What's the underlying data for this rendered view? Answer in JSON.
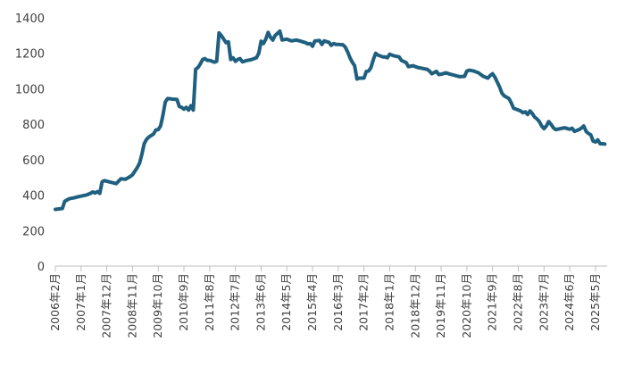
{
  "chart_data": {
    "type": "line",
    "title": "",
    "xlabel": "",
    "ylabel": "",
    "ylim": [
      0,
      1400
    ],
    "yticks": [
      0,
      200,
      400,
      600,
      800,
      1000,
      1200,
      1400
    ],
    "grid": false,
    "legend": "none",
    "line_color": "#1f5f7f",
    "x_ticks": [
      "2006年2月",
      "2007年1月",
      "2007年12月",
      "2008年11月",
      "2009年10月",
      "2010年9月",
      "2011年8月",
      "2012年7月",
      "2013年6月",
      "2014年5月",
      "2015年4月",
      "2016年3月",
      "2017年2月",
      "2018年1月",
      "2018年12月",
      "2019年11月",
      "2020年10月",
      "2021年9月",
      "2022年8月",
      "2023年7月",
      "2024年6月",
      "2025年5月"
    ],
    "series": [
      {
        "points": [
          [
            0,
            320
          ],
          [
            3,
            325
          ],
          [
            4,
            365
          ],
          [
            6,
            380
          ],
          [
            8,
            385
          ],
          [
            10,
            392
          ],
          [
            13,
            400
          ],
          [
            15,
            410
          ],
          [
            16,
            418
          ],
          [
            17,
            412
          ],
          [
            18,
            420
          ],
          [
            19,
            410
          ],
          [
            20,
            475
          ],
          [
            21,
            482
          ],
          [
            24,
            472
          ],
          [
            26,
            465
          ],
          [
            27,
            478
          ],
          [
            28,
            492
          ],
          [
            30,
            490
          ],
          [
            32,
            505
          ],
          [
            33,
            515
          ],
          [
            34,
            535
          ],
          [
            35,
            555
          ],
          [
            36,
            580
          ],
          [
            37,
            630
          ],
          [
            38,
            690
          ],
          [
            39,
            715
          ],
          [
            40,
            728
          ],
          [
            42,
            745
          ],
          [
            43,
            768
          ],
          [
            44,
            770
          ],
          [
            45,
            790
          ],
          [
            46,
            850
          ],
          [
            47,
            925
          ],
          [
            48,
            945
          ],
          [
            50,
            942
          ],
          [
            52,
            940
          ],
          [
            53,
            900
          ],
          [
            54,
            895
          ],
          [
            55,
            885
          ],
          [
            56,
            895
          ],
          [
            57,
            880
          ],
          [
            58,
            905
          ],
          [
            59,
            880
          ],
          [
            60,
            1110
          ],
          [
            61,
            1120
          ],
          [
            62,
            1140
          ],
          [
            63,
            1165
          ],
          [
            64,
            1170
          ],
          [
            65,
            1160
          ],
          [
            66,
            1160
          ],
          [
            67,
            1155
          ],
          [
            68,
            1150
          ],
          [
            69,
            1155
          ],
          [
            70,
            1315
          ],
          [
            71,
            1300
          ],
          [
            72,
            1280
          ],
          [
            73,
            1260
          ],
          [
            74,
            1265
          ],
          [
            75,
            1165
          ],
          [
            76,
            1175
          ],
          [
            77,
            1155
          ],
          [
            78,
            1165
          ],
          [
            79,
            1170
          ],
          [
            80,
            1152
          ],
          [
            82,
            1160
          ],
          [
            84,
            1165
          ],
          [
            86,
            1175
          ],
          [
            87,
            1200
          ],
          [
            88,
            1268
          ],
          [
            89,
            1255
          ],
          [
            90,
            1280
          ],
          [
            91,
            1318
          ],
          [
            92,
            1290
          ],
          [
            93,
            1275
          ],
          [
            94,
            1300
          ],
          [
            96,
            1325
          ],
          [
            97,
            1275
          ],
          [
            99,
            1280
          ],
          [
            101,
            1270
          ],
          [
            103,
            1275
          ],
          [
            105,
            1268
          ],
          [
            107,
            1260
          ],
          [
            108,
            1253
          ],
          [
            109,
            1255
          ],
          [
            110,
            1240
          ],
          [
            111,
            1270
          ],
          [
            113,
            1272
          ],
          [
            114,
            1250
          ],
          [
            115,
            1270
          ],
          [
            117,
            1262
          ],
          [
            118,
            1245
          ],
          [
            119,
            1255
          ],
          [
            120,
            1250
          ],
          [
            121,
            1250
          ],
          [
            123,
            1248
          ],
          [
            124,
            1235
          ],
          [
            125,
            1208
          ],
          [
            126,
            1175
          ],
          [
            127,
            1150
          ],
          [
            128,
            1130
          ],
          [
            129,
            1055
          ],
          [
            130,
            1060
          ],
          [
            132,
            1060
          ],
          [
            133,
            1098
          ],
          [
            134,
            1100
          ],
          [
            135,
            1120
          ],
          [
            136,
            1165
          ],
          [
            137,
            1200
          ],
          [
            138,
            1190
          ],
          [
            139,
            1185
          ],
          [
            140,
            1180
          ],
          [
            141,
            1180
          ],
          [
            142,
            1175
          ],
          [
            143,
            1195
          ],
          [
            145,
            1185
          ],
          [
            147,
            1180
          ],
          [
            148,
            1160
          ],
          [
            150,
            1148
          ],
          [
            151,
            1125
          ],
          [
            153,
            1130
          ],
          [
            155,
            1120
          ],
          [
            157,
            1115
          ],
          [
            158,
            1112
          ],
          [
            159,
            1110
          ],
          [
            160,
            1100
          ],
          [
            161,
            1085
          ],
          [
            163,
            1098
          ],
          [
            164,
            1080
          ],
          [
            165,
            1082
          ],
          [
            167,
            1090
          ],
          [
            169,
            1082
          ],
          [
            171,
            1075
          ],
          [
            173,
            1068
          ],
          [
            175,
            1070
          ],
          [
            176,
            1100
          ],
          [
            177,
            1105
          ],
          [
            179,
            1100
          ],
          [
            181,
            1090
          ],
          [
            182,
            1080
          ],
          [
            183,
            1070
          ],
          [
            185,
            1060
          ],
          [
            186,
            1075
          ],
          [
            187,
            1085
          ],
          [
            188,
            1065
          ],
          [
            189,
            1038
          ],
          [
            190,
            1010
          ],
          [
            191,
            975
          ],
          [
            192,
            960
          ],
          [
            194,
            945
          ],
          [
            195,
            920
          ],
          [
            196,
            890
          ],
          [
            197,
            885
          ],
          [
            199,
            875
          ],
          [
            200,
            865
          ],
          [
            201,
            870
          ],
          [
            202,
            855
          ],
          [
            203,
            875
          ],
          [
            204,
            860
          ],
          [
            205,
            840
          ],
          [
            206,
            830
          ],
          [
            207,
            815
          ],
          [
            208,
            790
          ],
          [
            209,
            775
          ],
          [
            210,
            790
          ],
          [
            211,
            815
          ],
          [
            212,
            800
          ],
          [
            213,
            780
          ],
          [
            214,
            770
          ],
          [
            216,
            775
          ],
          [
            217,
            778
          ],
          [
            218,
            780
          ],
          [
            219,
            775
          ],
          [
            220,
            772
          ],
          [
            221,
            778
          ],
          [
            222,
            760
          ],
          [
            223,
            765
          ],
          [
            224,
            770
          ],
          [
            225,
            778
          ],
          [
            226,
            790
          ],
          [
            227,
            760
          ],
          [
            228,
            748
          ],
          [
            229,
            740
          ],
          [
            230,
            705
          ],
          [
            231,
            700
          ],
          [
            232,
            712
          ],
          [
            233,
            690
          ],
          [
            234,
            690
          ],
          [
            235,
            688
          ]
        ]
      }
    ]
  }
}
